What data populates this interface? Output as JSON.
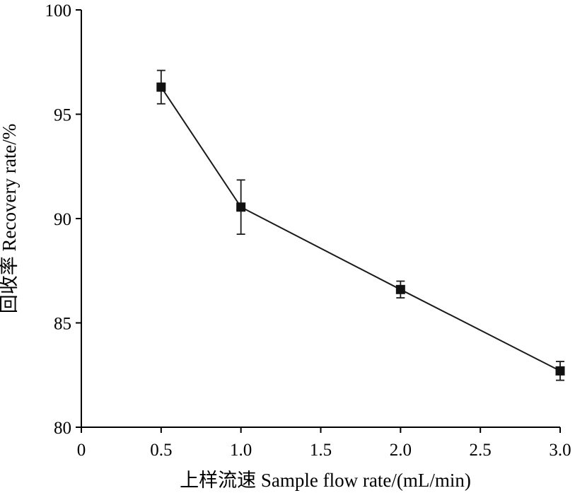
{
  "chart_data": {
    "type": "line",
    "x": [
      0.5,
      1.0,
      2.0,
      3.0
    ],
    "series": [
      {
        "values": [
          96.3,
          90.55,
          86.6,
          82.7
        ],
        "errors": [
          0.8,
          1.3,
          0.4,
          0.45
        ]
      }
    ],
    "xlabel": "上样流速 Sample flow rate/(mL/min)",
    "ylabel": "回收率 Recovery rate/%",
    "xlim": [
      0,
      3.0
    ],
    "ylim": [
      80,
      100
    ],
    "x_ticks": [
      "0",
      "0.5",
      "1.0",
      "1.5",
      "2.0",
      "2.5",
      "3.0"
    ],
    "y_ticks": [
      "80",
      "85",
      "90",
      "95",
      "100"
    ],
    "grid": false,
    "marker": "square",
    "colors": {
      "line": "#1a1a1a",
      "marker": "#111111"
    }
  }
}
